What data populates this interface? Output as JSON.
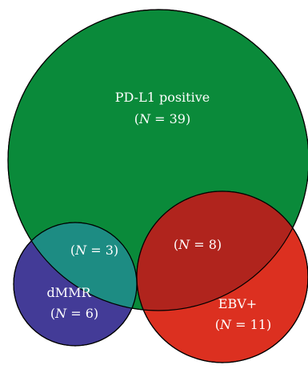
{
  "sets": {
    "pdl1": {
      "name": "PD-L1 positive",
      "n": "39",
      "color": "#0a8a3a"
    },
    "dmmr": {
      "name": "dMMR",
      "n": "6",
      "color": "#433b97"
    },
    "ebv": {
      "name": "EBV+",
      "n": "11",
      "color": "#dc3020"
    }
  },
  "overlaps": {
    "pdl1_dmmr": {
      "n": "3",
      "color": "#1d8c83"
    },
    "pdl1_ebv": {
      "n": "8",
      "color": "#b0241d"
    }
  },
  "notation": {
    "n_symbol": "N",
    "eq": " = ",
    "open": "(",
    "close": ")"
  }
}
